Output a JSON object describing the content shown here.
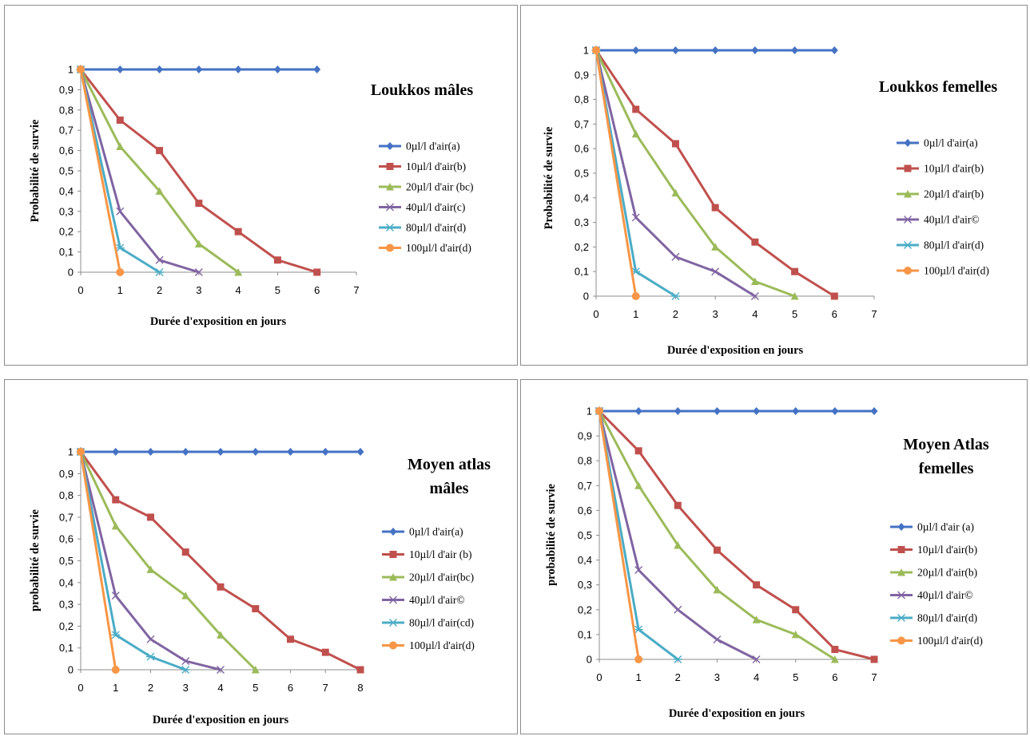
{
  "colors": [
    "#4472C4",
    "#C0504D",
    "#9BBB59",
    "#8064A2",
    "#4BACC6",
    "#F79646"
  ],
  "markers": [
    "diamond",
    "square",
    "triangle",
    "x",
    "star",
    "circle"
  ],
  "chart_data": [
    {
      "type": "line",
      "title": [
        "Loukkos  mâles"
      ],
      "xlabel": "Durée d'exposition en jours",
      "ylabel": "Probabilité de survie",
      "xlim": [
        0,
        7
      ],
      "ylim": [
        0,
        1
      ],
      "x_ticks": [
        "0",
        "1",
        "2",
        "3",
        "4",
        "5",
        "6",
        "7"
      ],
      "y_ticks": [
        "0",
        "0,1",
        "0,2",
        "0,3",
        "0,4",
        "0,5",
        "0,6",
        "0,7",
        "0,8",
        "0,9",
        "1"
      ],
      "series": [
        {
          "name": "0µl/l d'air(a)",
          "x": [
            0,
            1,
            2,
            3,
            4,
            5,
            6
          ],
          "y": [
            1,
            1,
            1,
            1,
            1,
            1,
            1
          ]
        },
        {
          "name": "10µl/l d'air(b)",
          "x": [
            0,
            1,
            2,
            3,
            4,
            5,
            6
          ],
          "y": [
            1,
            0.75,
            0.6,
            0.34,
            0.2,
            0.06,
            0
          ]
        },
        {
          "name": "20µl/l d'air (bc)",
          "x": [
            0,
            1,
            2,
            3,
            4
          ],
          "y": [
            1,
            0.62,
            0.4,
            0.14,
            0
          ]
        },
        {
          "name": "40µl/l d'air(c)",
          "x": [
            0,
            1,
            2,
            3
          ],
          "y": [
            1,
            0.3,
            0.06,
            0
          ]
        },
        {
          "name": "80µl/l d'air(d)",
          "x": [
            0,
            1,
            2
          ],
          "y": [
            1,
            0.12,
            0
          ]
        },
        {
          "name": "100µl/l d'air(d)",
          "x": [
            0,
            1
          ],
          "y": [
            1,
            0
          ]
        }
      ]
    },
    {
      "type": "line",
      "title": [
        "Loukkos femelles"
      ],
      "xlabel": "Durée d'exposition en jours",
      "ylabel": "Probabilité de survie",
      "xlim": [
        0,
        7
      ],
      "ylim": [
        0,
        1
      ],
      "x_ticks": [
        "0",
        "1",
        "2",
        "3",
        "4",
        "5",
        "6",
        "7"
      ],
      "y_ticks": [
        "0",
        "0,1",
        "0,2",
        "0,3",
        "0,4",
        "0,5",
        "0,6",
        "0,7",
        "0,8",
        "0,9",
        "1"
      ],
      "series": [
        {
          "name": "0µl/l d'air(a)",
          "x": [
            0,
            1,
            2,
            3,
            4,
            5,
            6
          ],
          "y": [
            1,
            1,
            1,
            1,
            1,
            1,
            1
          ]
        },
        {
          "name": "10µl/l d'air(b)",
          "x": [
            0,
            1,
            2,
            3,
            4,
            5,
            6
          ],
          "y": [
            1,
            0.76,
            0.62,
            0.36,
            0.22,
            0.1,
            0
          ]
        },
        {
          "name": "20µl/l d'air(b)",
          "x": [
            0,
            1,
            2,
            3,
            4,
            5
          ],
          "y": [
            1,
            0.66,
            0.42,
            0.2,
            0.06,
            0
          ]
        },
        {
          "name": "40µl/l d'air©",
          "x": [
            0,
            1,
            2,
            3,
            4
          ],
          "y": [
            1,
            0.32,
            0.16,
            0.1,
            0
          ]
        },
        {
          "name": "80µl/l d'air(d)",
          "x": [
            0,
            1,
            2
          ],
          "y": [
            1,
            0.1,
            0
          ]
        },
        {
          "name": "100µl/l d'air(d)",
          "x": [
            0,
            1
          ],
          "y": [
            1,
            0
          ]
        }
      ]
    },
    {
      "type": "line",
      "title": [
        "Moyen atlas",
        "mâles"
      ],
      "xlabel": "Durée d'exposition en jours",
      "ylabel": "probabilité de survie",
      "xlim": [
        0,
        8
      ],
      "ylim": [
        0,
        1
      ],
      "x_ticks": [
        "0",
        "1",
        "2",
        "3",
        "4",
        "5",
        "6",
        "7",
        "8"
      ],
      "y_ticks": [
        "0",
        "0,1",
        "0,2",
        "0,3",
        "0,4",
        "0,5",
        "0,6",
        "0,7",
        "0,8",
        "0,9",
        "1"
      ],
      "series": [
        {
          "name": "0µl/l d'air(a)",
          "x": [
            0,
            1,
            2,
            3,
            4,
            5,
            6,
            7,
            8
          ],
          "y": [
            1,
            1,
            1,
            1,
            1,
            1,
            1,
            1,
            1
          ]
        },
        {
          "name": "10µl/l d'air (b)",
          "x": [
            0,
            1,
            2,
            3,
            4,
            5,
            6,
            7,
            8
          ],
          "y": [
            1,
            0.78,
            0.7,
            0.54,
            0.38,
            0.28,
            0.14,
            0.08,
            0
          ]
        },
        {
          "name": "20µl/l d'air(bc)",
          "x": [
            0,
            1,
            2,
            3,
            4,
            5
          ],
          "y": [
            1,
            0.66,
            0.46,
            0.34,
            0.16,
            0
          ]
        },
        {
          "name": "40µl/l d'air©",
          "x": [
            0,
            1,
            2,
            3,
            4
          ],
          "y": [
            1,
            0.34,
            0.14,
            0.04,
            0
          ]
        },
        {
          "name": "80µl/l d'air(cd)",
          "x": [
            0,
            1,
            2,
            3
          ],
          "y": [
            1,
            0.16,
            0.06,
            0
          ]
        },
        {
          "name": "100µl/l d'air(d)",
          "x": [
            0,
            1
          ],
          "y": [
            1,
            0
          ]
        }
      ]
    },
    {
      "type": "line",
      "title": [
        "Moyen Atlas",
        "femelles"
      ],
      "xlabel": "Durée d'exposition en jours",
      "ylabel": "probabilité de survie",
      "xlim": [
        0,
        7
      ],
      "ylim": [
        0,
        1
      ],
      "x_ticks": [
        "0",
        "1",
        "2",
        "3",
        "4",
        "5",
        "6",
        "7"
      ],
      "y_ticks": [
        "0",
        "0,1",
        "0,2",
        "0,3",
        "0,4",
        "0,5",
        "0,6",
        "0,7",
        "0,8",
        "0,9",
        "1"
      ],
      "series": [
        {
          "name": "0µl/l d'air (a)",
          "x": [
            0,
            1,
            2,
            3,
            4,
            5,
            6,
            7
          ],
          "y": [
            1,
            1,
            1,
            1,
            1,
            1,
            1,
            1
          ]
        },
        {
          "name": "10µl/l d'air(b)",
          "x": [
            0,
            1,
            2,
            3,
            4,
            5,
            6,
            7
          ],
          "y": [
            1,
            0.84,
            0.62,
            0.44,
            0.3,
            0.2,
            0.04,
            0
          ]
        },
        {
          "name": "20µl/l d'air(b)",
          "x": [
            0,
            1,
            2,
            3,
            4,
            5,
            6
          ],
          "y": [
            1,
            0.7,
            0.46,
            0.28,
            0.16,
            0.1,
            0
          ]
        },
        {
          "name": "40µl/l d'air©",
          "x": [
            0,
            1,
            2,
            3,
            4
          ],
          "y": [
            1,
            0.36,
            0.2,
            0.08,
            0
          ]
        },
        {
          "name": "80µl/l d'air(d)",
          "x": [
            0,
            1,
            2
          ],
          "y": [
            1,
            0.12,
            0
          ]
        },
        {
          "name": "100µl/l d'air(d)",
          "x": [
            0,
            1
          ],
          "y": [
            1,
            0
          ]
        }
      ]
    }
  ]
}
